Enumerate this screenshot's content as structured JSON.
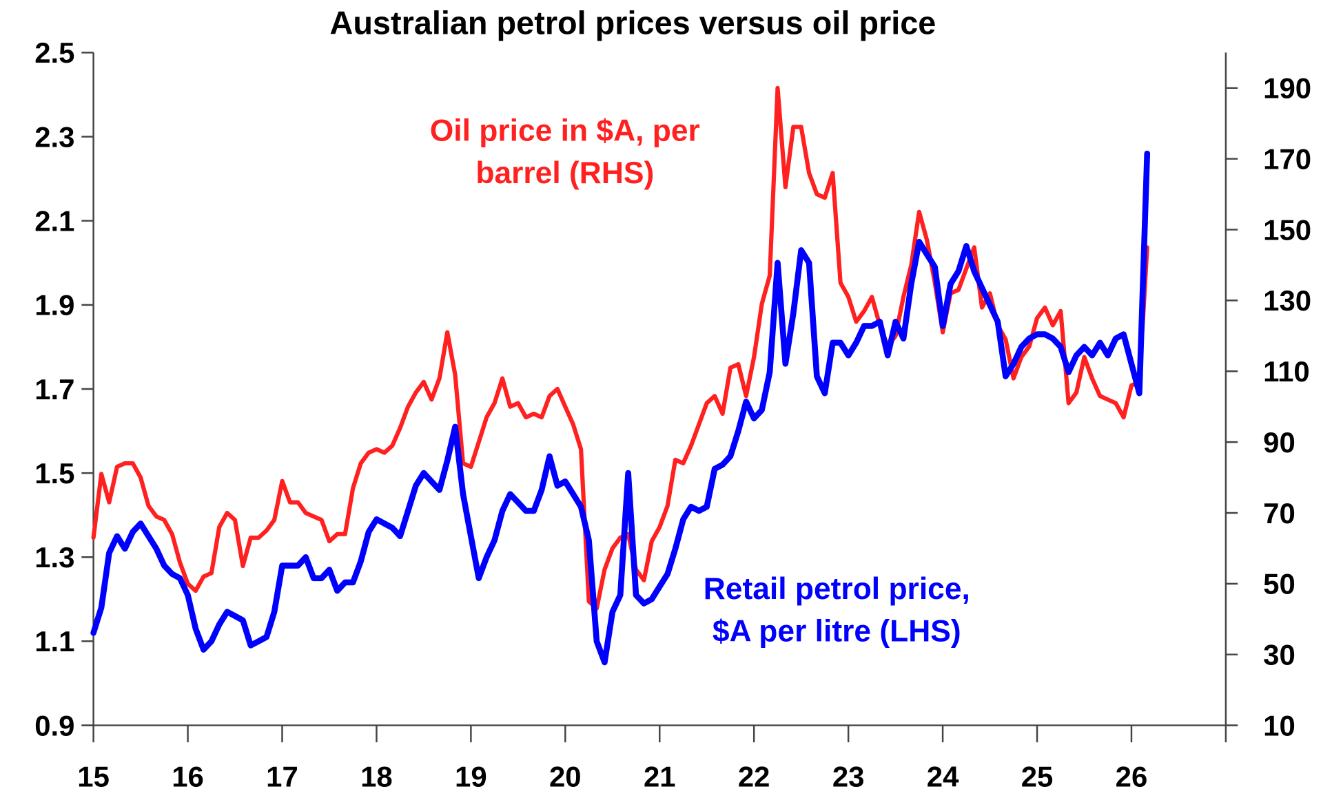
{
  "chart_data": {
    "type": "line",
    "title": "Australian petrol prices versus oil price",
    "x_tick_labels": [
      "15",
      "16",
      "17",
      "18",
      "19",
      "20",
      "21",
      "22",
      "23",
      "24",
      "25",
      "26"
    ],
    "xlim": [
      "2015-01",
      "2027-01"
    ],
    "y_left": {
      "ylim": [
        0.9,
        2.5
      ],
      "tick_labels": [
        "0.9",
        "1.1",
        "1.3",
        "1.5",
        "1.7",
        "1.9",
        "2.1",
        "2.3",
        "2.5"
      ]
    },
    "y_right": {
      "ylim": [
        10,
        200
      ],
      "tick_labels": [
        "10",
        "30",
        "50",
        "70",
        "90",
        "110",
        "130",
        "150",
        "170",
        "190"
      ]
    },
    "grid": false,
    "x": [
      "2015-01",
      "2015-02",
      "2015-03",
      "2015-04",
      "2015-05",
      "2015-06",
      "2015-07",
      "2015-08",
      "2015-09",
      "2015-10",
      "2015-11",
      "2015-12",
      "2016-01",
      "2016-02",
      "2016-03",
      "2016-04",
      "2016-05",
      "2016-06",
      "2016-07",
      "2016-08",
      "2016-09",
      "2016-10",
      "2016-11",
      "2016-12",
      "2017-01",
      "2017-02",
      "2017-03",
      "2017-04",
      "2017-05",
      "2017-06",
      "2017-07",
      "2017-08",
      "2017-09",
      "2017-10",
      "2017-11",
      "2017-12",
      "2018-01",
      "2018-02",
      "2018-03",
      "2018-04",
      "2018-05",
      "2018-06",
      "2018-07",
      "2018-08",
      "2018-09",
      "2018-10",
      "2018-11",
      "2018-12",
      "2019-01",
      "2019-02",
      "2019-03",
      "2019-04",
      "2019-05",
      "2019-06",
      "2019-07",
      "2019-08",
      "2019-09",
      "2019-10",
      "2019-11",
      "2019-12",
      "2020-01",
      "2020-02",
      "2020-03",
      "2020-04",
      "2020-05",
      "2020-06",
      "2020-07",
      "2020-08",
      "2020-09",
      "2020-10",
      "2020-11",
      "2020-12",
      "2021-01",
      "2021-02",
      "2021-03",
      "2021-04",
      "2021-05",
      "2021-06",
      "2021-07",
      "2021-08",
      "2021-09",
      "2021-10",
      "2021-11",
      "2021-12",
      "2022-01",
      "2022-02",
      "2022-03",
      "2022-04",
      "2022-05",
      "2022-06",
      "2022-07",
      "2022-08",
      "2022-09",
      "2022-10",
      "2022-11",
      "2022-12",
      "2023-01",
      "2023-02",
      "2023-03",
      "2023-04",
      "2023-05",
      "2023-06",
      "2023-07",
      "2023-08",
      "2023-09",
      "2023-10",
      "2023-11",
      "2023-12",
      "2024-01",
      "2024-02",
      "2024-03",
      "2024-04",
      "2024-05",
      "2024-06",
      "2024-07",
      "2024-08",
      "2024-09",
      "2024-10",
      "2024-11",
      "2024-12",
      "2025-01",
      "2025-02",
      "2025-03",
      "2025-04",
      "2025-05",
      "2025-06",
      "2025-07",
      "2025-08",
      "2025-09",
      "2025-10",
      "2025-11",
      "2025-12",
      "2026-01",
      "2026-02",
      "2026-03"
    ],
    "series": [
      {
        "name": "Retail petrol price, $A per litre (LHS)",
        "label_lines": [
          "Retail petrol price,",
          "$A per litre (LHS)"
        ],
        "axis": "left",
        "color": "#0000ff",
        "values": [
          1.12,
          1.18,
          1.31,
          1.35,
          1.32,
          1.36,
          1.38,
          1.35,
          1.32,
          1.28,
          1.26,
          1.25,
          1.21,
          1.13,
          1.08,
          1.1,
          1.14,
          1.17,
          1.16,
          1.15,
          1.09,
          1.1,
          1.11,
          1.17,
          1.28,
          1.28,
          1.28,
          1.3,
          1.25,
          1.25,
          1.27,
          1.22,
          1.24,
          1.24,
          1.29,
          1.36,
          1.39,
          1.38,
          1.37,
          1.35,
          1.41,
          1.47,
          1.5,
          1.48,
          1.46,
          1.53,
          1.61,
          1.45,
          1.35,
          1.25,
          1.3,
          1.34,
          1.41,
          1.45,
          1.43,
          1.41,
          1.41,
          1.46,
          1.54,
          1.47,
          1.48,
          1.45,
          1.42,
          1.34,
          1.1,
          1.05,
          1.17,
          1.21,
          1.5,
          1.21,
          1.19,
          1.2,
          1.23,
          1.26,
          1.32,
          1.39,
          1.42,
          1.41,
          1.42,
          1.51,
          1.52,
          1.54,
          1.6,
          1.67,
          1.63,
          1.65,
          1.74,
          2.0,
          1.76,
          1.88,
          2.03,
          2.0,
          1.73,
          1.69,
          1.81,
          1.81,
          1.78,
          1.81,
          1.85,
          1.85,
          1.86,
          1.78,
          1.86,
          1.82,
          1.95,
          2.05,
          2.02,
          1.99,
          1.85,
          1.95,
          1.98,
          2.04,
          1.98,
          1.94,
          1.9,
          1.86,
          1.73,
          1.76,
          1.8,
          1.82,
          1.83,
          1.83,
          1.82,
          1.8,
          1.74,
          1.78,
          1.8,
          1.78,
          1.81,
          1.78,
          1.82,
          1.83,
          1.76,
          1.69,
          2.26
        ]
      },
      {
        "name": "Oil price in $A, per barrel (RHS)",
        "label_lines": [
          "Oil price in $A, per",
          "barrel (RHS)"
        ],
        "axis": "right",
        "color": "#ff2020",
        "values": [
          63,
          81,
          73,
          83,
          84,
          84,
          80,
          72,
          69,
          68,
          64,
          56,
          50,
          48,
          52,
          53,
          66,
          70,
          68,
          55,
          63,
          63,
          65,
          68,
          79,
          73,
          73,
          70,
          69,
          68,
          62,
          64,
          64,
          77,
          84,
          87,
          88,
          87,
          89,
          94,
          100,
          104,
          107,
          102,
          108,
          121,
          109,
          84,
          83,
          90,
          97,
          101,
          108,
          100,
          101,
          97,
          98,
          97,
          103,
          105,
          100,
          95,
          88,
          45,
          43,
          54,
          60,
          63,
          64,
          54,
          51,
          62,
          66,
          72,
          85,
          84,
          89,
          95,
          101,
          103,
          98,
          111,
          112,
          103,
          114,
          129,
          137,
          190,
          162,
          179,
          179,
          166,
          160,
          159,
          166,
          135,
          131,
          124,
          127,
          131,
          123,
          117,
          120,
          131,
          140,
          155,
          147,
          135,
          121,
          132,
          133,
          139,
          145,
          128,
          132,
          123,
          119,
          108,
          114,
          117,
          125,
          128,
          123,
          127,
          101,
          104,
          114,
          108,
          103,
          102,
          101,
          97,
          106,
          107,
          145
        ]
      }
    ]
  }
}
